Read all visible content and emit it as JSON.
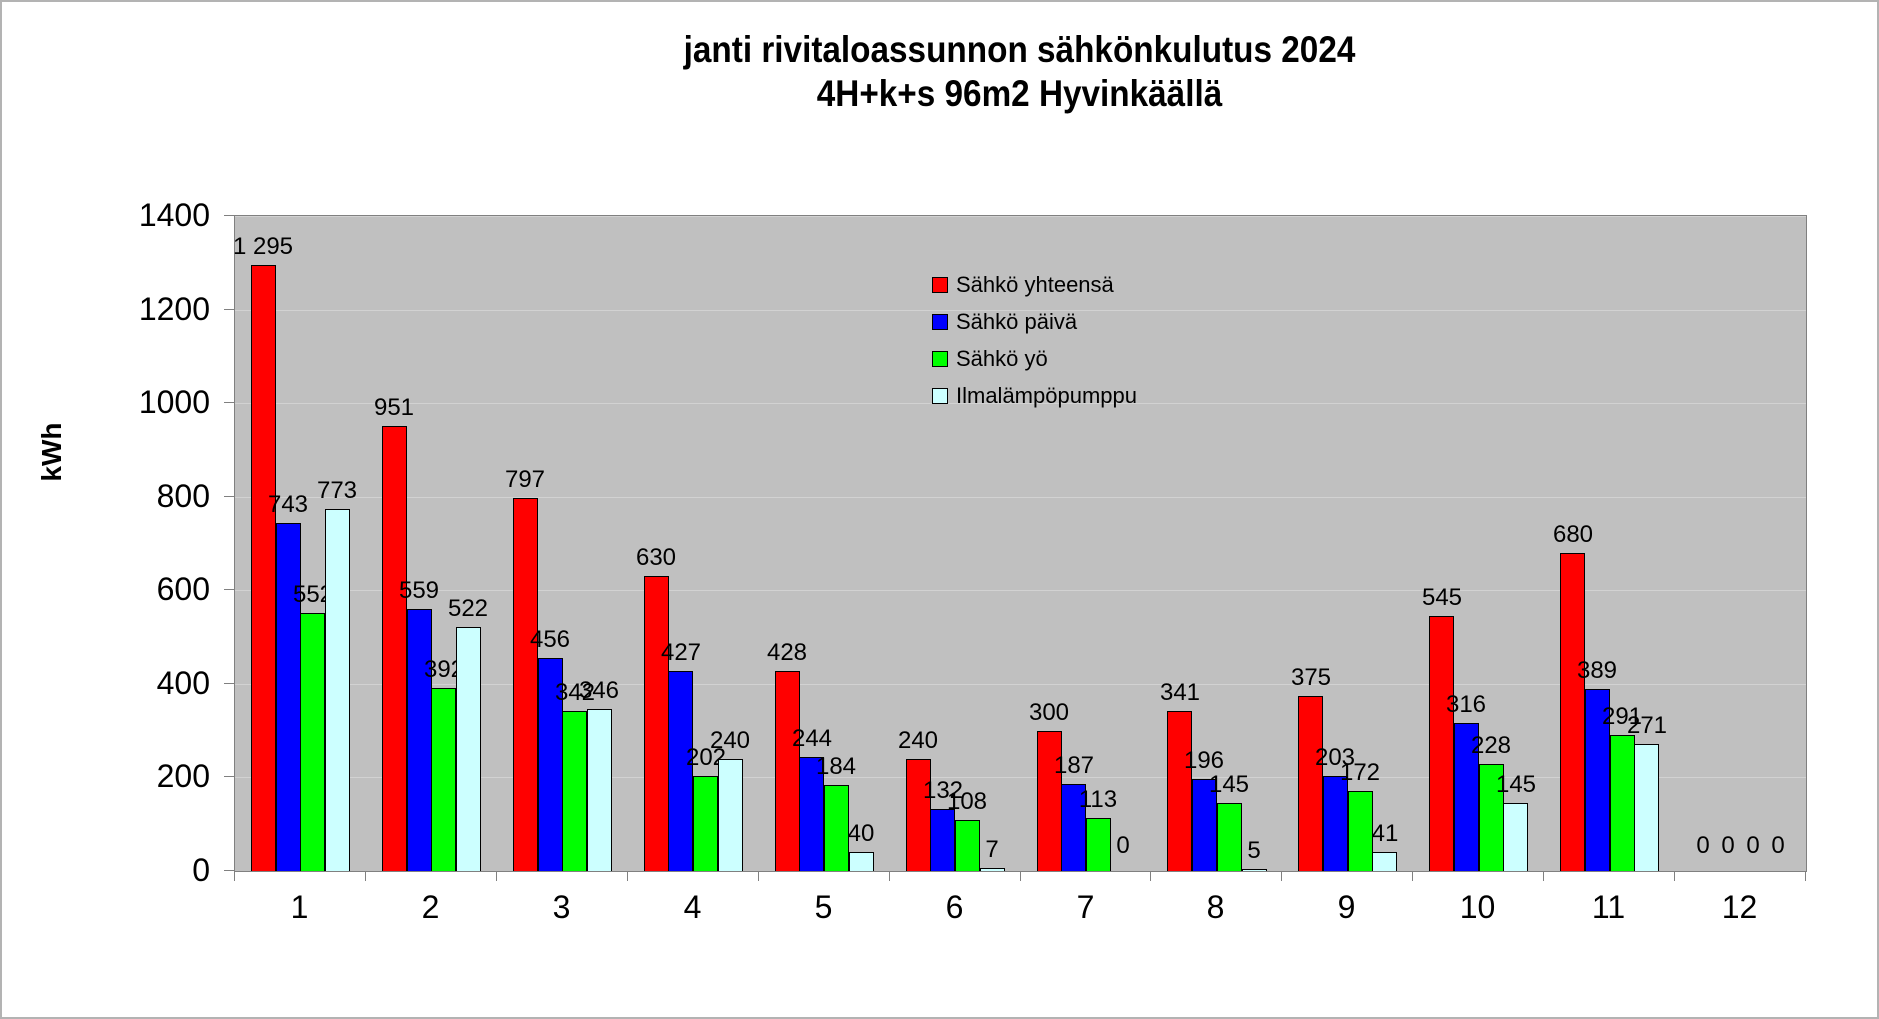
{
  "title": {
    "line1": "janti rivitaloassunnon sähkönkulutus 2024",
    "line2": "4H+k+s 96m2 Hyvinkäällä"
  },
  "y_axis": {
    "label": "kWh",
    "tick_values": [
      0,
      200,
      400,
      600,
      800,
      1000,
      1200,
      1400
    ],
    "tick_labels": [
      "0",
      "200",
      "400",
      "600",
      "800",
      "1000",
      "1200",
      "1400"
    ]
  },
  "x_axis": {
    "tick_labels": [
      "1",
      "2",
      "3",
      "4",
      "5",
      "6",
      "7",
      "8",
      "9",
      "10",
      "11",
      "12"
    ]
  },
  "legend": {
    "items": [
      {
        "label": "Sähkö yhteensä",
        "color": "#ff0000"
      },
      {
        "label": "Sähkö päivä",
        "color": "#0000ff"
      },
      {
        "label": "Sähkö yö",
        "color": "#00ff00"
      },
      {
        "label": "Ilmalämpöpumppu",
        "color": "#ccffff"
      }
    ]
  },
  "chart_data": {
    "type": "bar",
    "title": "janti rivitaloassunnon sähkönkulutus 2024 4H+k+s 96m2 Hyvinkäällä",
    "xlabel": "",
    "ylabel": "kWh",
    "ylim": [
      0,
      1400
    ],
    "grid": true,
    "gridline_interval": 200,
    "legend_position": "inside-top-center",
    "plot_background": "#c0c0c0",
    "categories": [
      "1",
      "2",
      "3",
      "4",
      "5",
      "6",
      "7",
      "8",
      "9",
      "10",
      "11",
      "12"
    ],
    "series": [
      {
        "name": "Sähkö yhteensä",
        "color": "#ff0000",
        "values": [
          1295,
          951,
          797,
          630,
          428,
          240,
          300,
          341,
          375,
          545,
          680,
          0
        ],
        "labels": [
          "1 295",
          "951",
          "797",
          "630",
          "428",
          "240",
          "300",
          "341",
          "375",
          "545",
          "680",
          "0"
        ]
      },
      {
        "name": "Sähkö päivä",
        "color": "#0000ff",
        "values": [
          743,
          559,
          456,
          427,
          244,
          132,
          187,
          196,
          203,
          316,
          389,
          0
        ],
        "labels": [
          "743",
          "559",
          "456",
          "427",
          "244",
          "132",
          "187",
          "196",
          "203",
          "316",
          "389",
          "0"
        ]
      },
      {
        "name": "Sähkö yö",
        "color": "#00ff00",
        "values": [
          552,
          392,
          342,
          202,
          184,
          108,
          113,
          145,
          172,
          228,
          291,
          0
        ],
        "labels": [
          "552",
          "392",
          "342",
          "202",
          "184",
          "108",
          "113",
          "145",
          "172",
          "228",
          "291",
          "0"
        ]
      },
      {
        "name": "Ilmalämpöpumppu",
        "color": "#ccffff",
        "values": [
          773,
          522,
          346,
          240,
          40,
          7,
          0,
          5,
          41,
          145,
          271,
          0
        ],
        "labels": [
          "773",
          "522",
          "346",
          "240",
          "40",
          "7",
          "0",
          "5",
          "41",
          "145",
          "271",
          "0"
        ]
      }
    ]
  }
}
